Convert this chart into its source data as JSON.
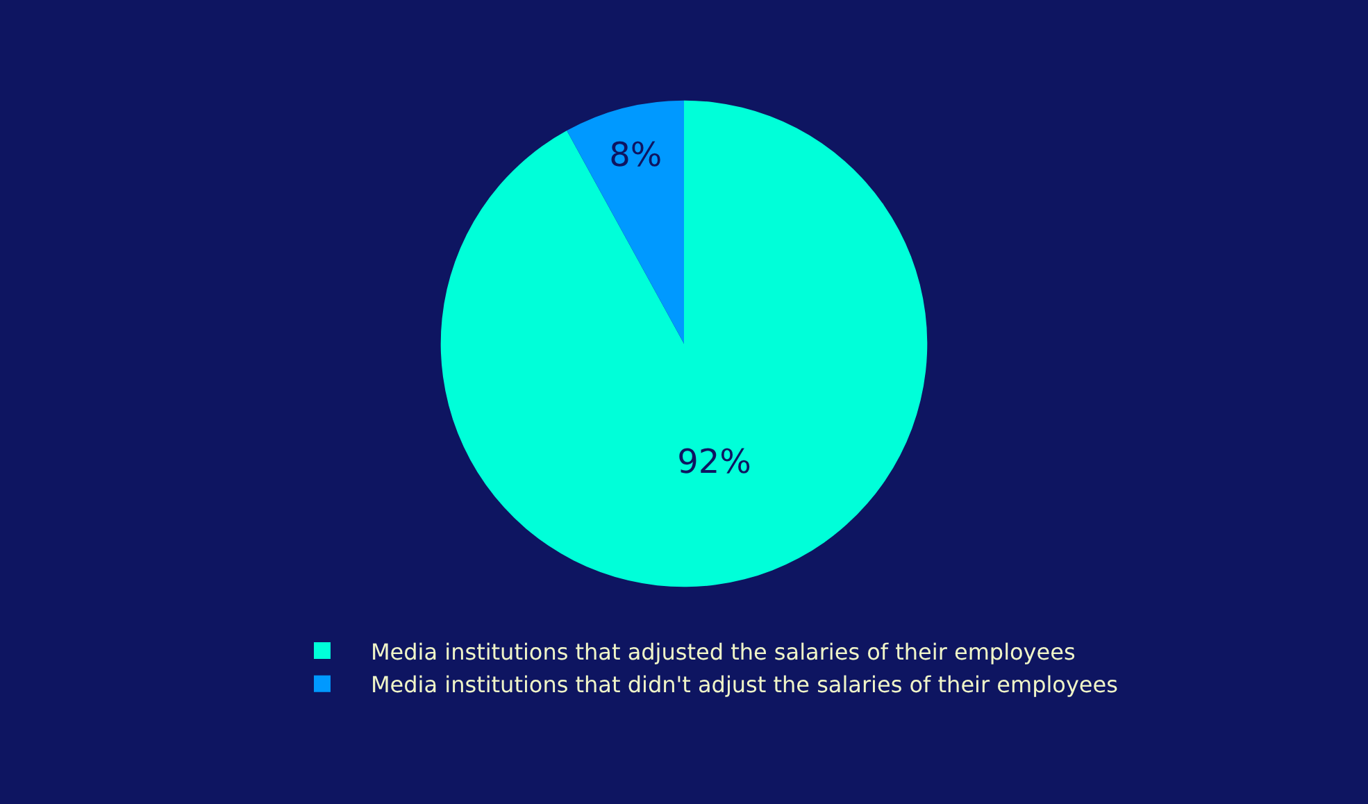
{
  "chart_data": {
    "type": "pie",
    "categories": [
      "Media institutions that adjusted the salaries of their employees",
      "Media institutions that didn't adjust the salaries of their employees"
    ],
    "values": [
      92,
      8
    ],
    "colors": [
      "#00ffd9",
      "#0099ff"
    ],
    "value_labels": [
      "92%",
      "8%"
    ],
    "legend": "bottom"
  }
}
